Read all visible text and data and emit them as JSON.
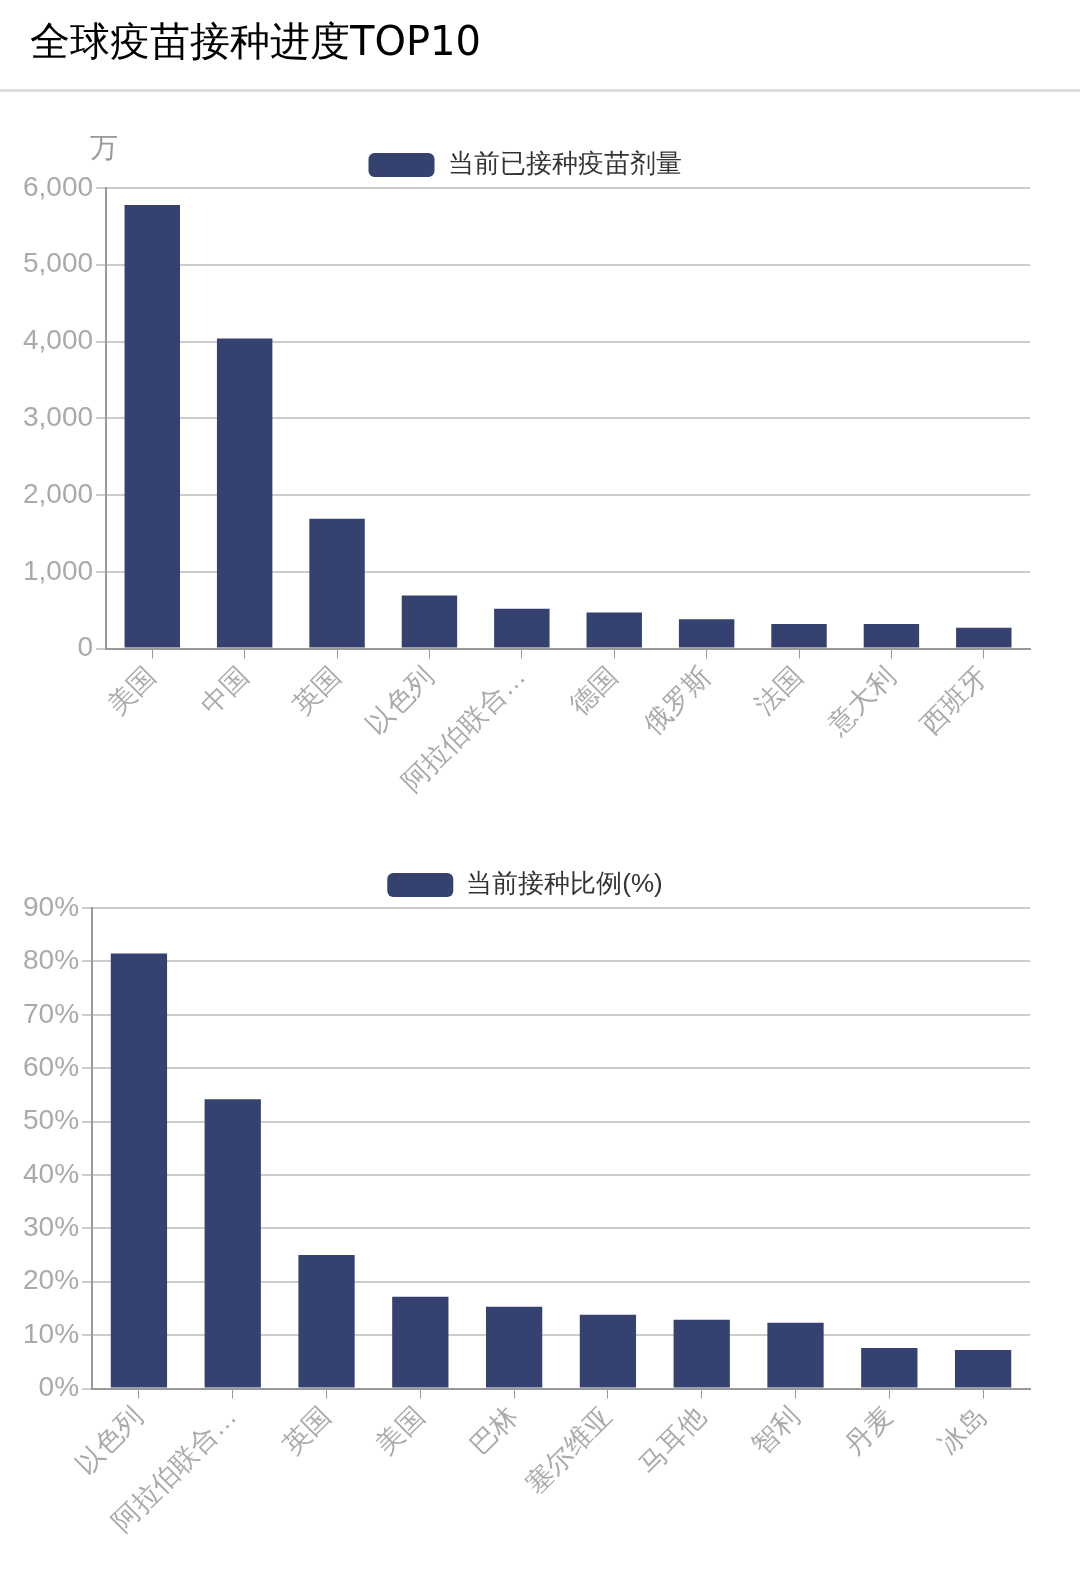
{
  "chart_data": [
    {
      "type": "bar",
      "title": "全球疫苗接种进度TOP10",
      "ylabel": "万",
      "categories": [
        "美国",
        "中国",
        "英国",
        "以色列",
        "阿拉伯联合…",
        "德国",
        "俄罗斯",
        "法国",
        "意大利",
        "西班牙"
      ],
      "series": [
        {
          "name": "当前已接种疫苗剂量",
          "color": "#35426f",
          "values": [
            5780,
            4040,
            1690,
            690,
            520,
            470,
            380,
            320,
            320,
            270
          ]
        }
      ],
      "ylim": [
        0,
        6000
      ],
      "yticks": [
        0,
        {
          "value": 1000,
          "label": "1,000"
        },
        {
          "value": 2000,
          "label": "2,000"
        },
        {
          "value": 3000,
          "label": "3,000"
        },
        {
          "value": 4000,
          "label": "4,000"
        },
        {
          "value": 5000,
          "label": "5,000"
        },
        {
          "value": 6000,
          "label": "6,000"
        }
      ],
      "grid": "y",
      "legend": "top"
    },
    {
      "type": "bar",
      "categories": [
        "以色列",
        "阿拉伯联合…",
        "英国",
        "美国",
        "巴林",
        "塞尔维亚",
        "马耳他",
        "智利",
        "丹麦",
        "冰岛"
      ],
      "series": [
        {
          "name": "当前接种比例(%)",
          "color": "#35426f",
          "values": [
            81.5,
            54.2,
            25,
            17.2,
            15.3,
            13.8,
            12.9,
            12.3,
            7.6,
            7.2
          ]
        }
      ],
      "ylim": [
        0,
        90
      ],
      "yticks": [
        {
          "value": 0,
          "label": "0%"
        },
        {
          "value": 10,
          "label": "10%"
        },
        {
          "value": 20,
          "label": "20%"
        },
        {
          "value": 30,
          "label": "30%"
        },
        {
          "value": 40,
          "label": "40%"
        },
        {
          "value": 50,
          "label": "50%"
        },
        {
          "value": 60,
          "label": "60%"
        },
        {
          "value": 70,
          "label": "70%"
        },
        {
          "value": 80,
          "label": "80%"
        },
        {
          "value": 90,
          "label": "90%"
        }
      ],
      "grid": "y",
      "legend": "top"
    }
  ]
}
